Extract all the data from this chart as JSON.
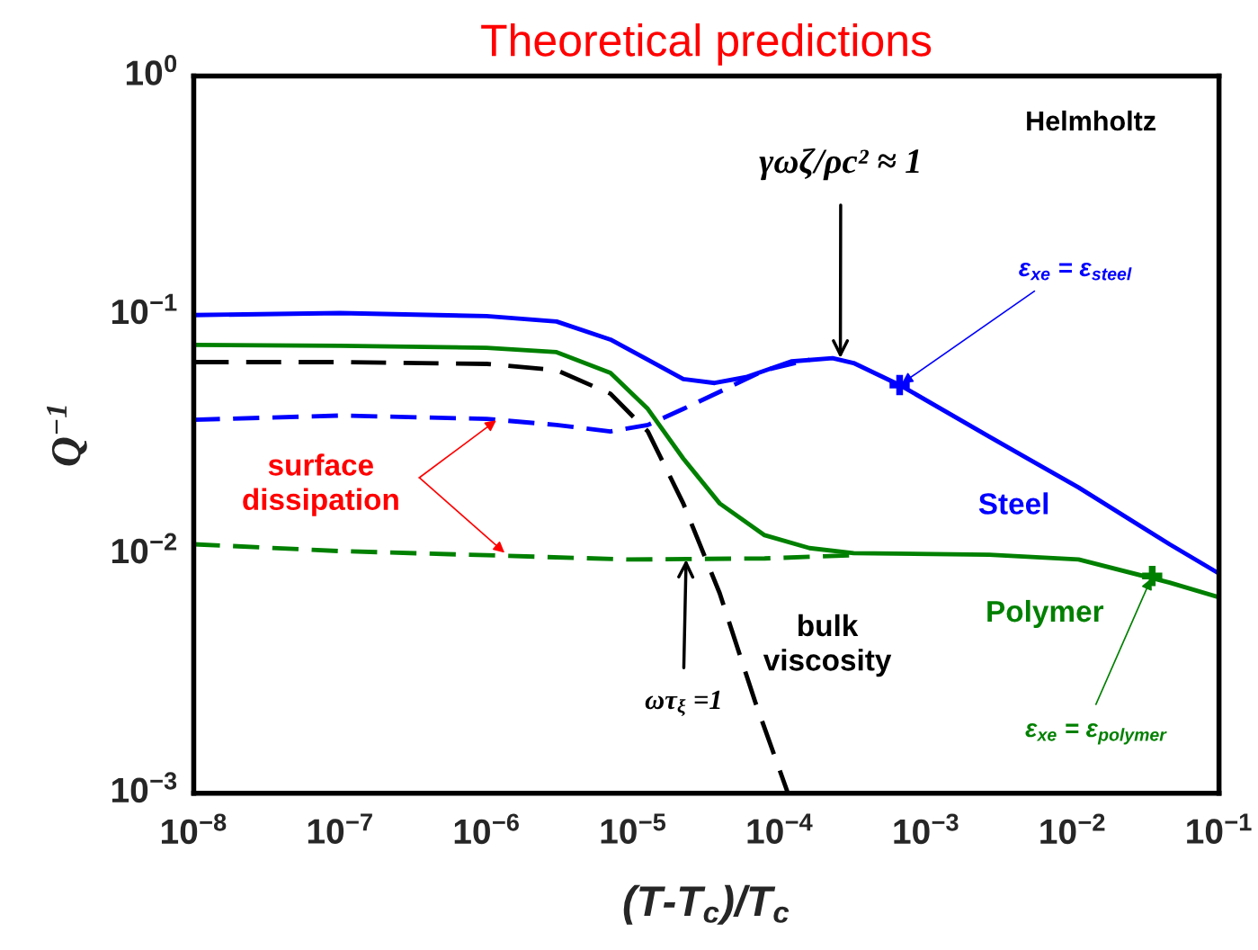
{
  "chart_data": {
    "type": "line",
    "title": "Theoretical predictions",
    "xlabel": "(T-T$_{c}$)/T$_{c}$",
    "ylabel": "Q$^{−1}$",
    "log": "xy",
    "grid": false,
    "legend": false,
    "xlim": [
      1e-08,
      0.1
    ],
    "ylim": [
      0.001,
      1
    ],
    "xticks": [
      {
        "value": 1e-08,
        "label": "10$^{−8}$"
      },
      {
        "value": 1e-07,
        "label": "10$^{−7}$"
      },
      {
        "value": 1e-06,
        "label": "10$^{−6}$"
      },
      {
        "value": 1e-05,
        "label": "10$^{−5}$"
      },
      {
        "value": 0.0001,
        "label": "10$^{−4}$"
      },
      {
        "value": 0.001,
        "label": "10$^{−3}$"
      },
      {
        "value": 0.01,
        "label": "10$^{−2}$"
      },
      {
        "value": 0.1,
        "label": "10$^{−1}$"
      }
    ],
    "yticks": [
      {
        "value": 0.001,
        "label": "10$^{−3}$"
      },
      {
        "value": 0.01,
        "label": "10$^{−2}$"
      },
      {
        "value": 0.1,
        "label": "10$^{−1}$"
      },
      {
        "value": 1,
        "label": "10$^{0}$"
      }
    ],
    "series": [
      {
        "name": "Steel",
        "color": "#0000ff",
        "line_style": "solid",
        "x": [
          1e-08,
          1e-07,
          1e-06,
          3e-06,
          7e-06,
          1.26e-05,
          2.2e-05,
          3.6e-05,
          5.9e-05,
          0.00012,
          0.00023,
          0.00032,
          0.00066,
          0.0027,
          0.011,
          0.046,
          0.1
        ],
        "values": [
          0.1,
          0.102,
          0.099,
          0.094,
          0.079,
          0.065,
          0.054,
          0.052,
          0.055,
          0.064,
          0.066,
          0.063,
          0.051,
          0.031,
          0.019,
          0.011,
          0.0083
        ]
      },
      {
        "color": "#0000ff",
        "line_style": "dashed",
        "x": [
          1e-08,
          1e-07,
          1e-06,
          3e-06,
          7e-06,
          1.26e-05,
          2.2e-05,
          3.9e-05,
          7.9e-05,
          0.00016
        ],
        "values": [
          0.0365,
          0.038,
          0.0368,
          0.0347,
          0.0326,
          0.0347,
          0.0405,
          0.0478,
          0.0588,
          0.065
        ]
      },
      {
        "name": "Polymer",
        "color": "#008000",
        "line_style": "solid",
        "x": [
          1e-08,
          1e-07,
          1e-06,
          3e-06,
          7e-06,
          1.26e-05,
          2.2e-05,
          3.9e-05,
          7.9e-05,
          0.00016,
          0.00032,
          0.0027,
          0.011,
          0.046,
          0.1
        ],
        "values": [
          0.075,
          0.0744,
          0.073,
          0.07,
          0.0573,
          0.0405,
          0.0251,
          0.0163,
          0.012,
          0.0106,
          0.0101,
          0.00995,
          0.0095,
          0.0076,
          0.0066
        ]
      },
      {
        "color": "#008000",
        "line_style": "dashed",
        "x": [
          1e-08,
          1e-07,
          1e-06,
          9.3e-06,
          7.9e-05,
          0.00032
        ],
        "values": [
          0.011,
          0.0103,
          0.0099,
          0.0095,
          0.0096,
          0.0099
        ]
      },
      {
        "color": "#000000",
        "line_style": "dashed",
        "x": [
          1e-08,
          1e-07,
          1e-06,
          3e-06,
          7e-06,
          1.26e-05,
          2.2e-05,
          3.9e-05,
          6.8e-05,
          0.000114
        ],
        "values": [
          0.0636,
          0.0636,
          0.0625,
          0.0588,
          0.0469,
          0.0326,
          0.0163,
          0.00686,
          0.00242,
          0.001
        ]
      },
      {
        "type": "scatter",
        "marker": "cross",
        "color": "#0000ff",
        "x": [
          0.00066
        ],
        "values": [
          0.051
        ]
      },
      {
        "type": "scatter",
        "marker": "cross",
        "color": "#008000",
        "x": [
          0.035
        ],
        "values": [
          0.0081
        ]
      }
    ],
    "annotations": [
      "Helmholtz",
      {
        "text": "γωζ/ρc² ≈ 1",
        "x": 0.00026,
        "y": 0.066
      },
      {
        "text": "ε$_{xe}$ = ε$_{steel}$",
        "x": 0.00066,
        "y": 0.051
      },
      {
        "text": "ε$_{xe}$ = ε$_{polymer}$",
        "x": 0.035,
        "y": 0.0081
      },
      {
        "text": "surface\ndissipation",
        "x": 1.2e-06,
        "y": 0.0368
      },
      {
        "text": "ωτ$_{ξ}$ =1",
        "x": 2.3e-05,
        "y": 0.0095
      },
      "bulk\nviscosity"
    ]
  }
}
